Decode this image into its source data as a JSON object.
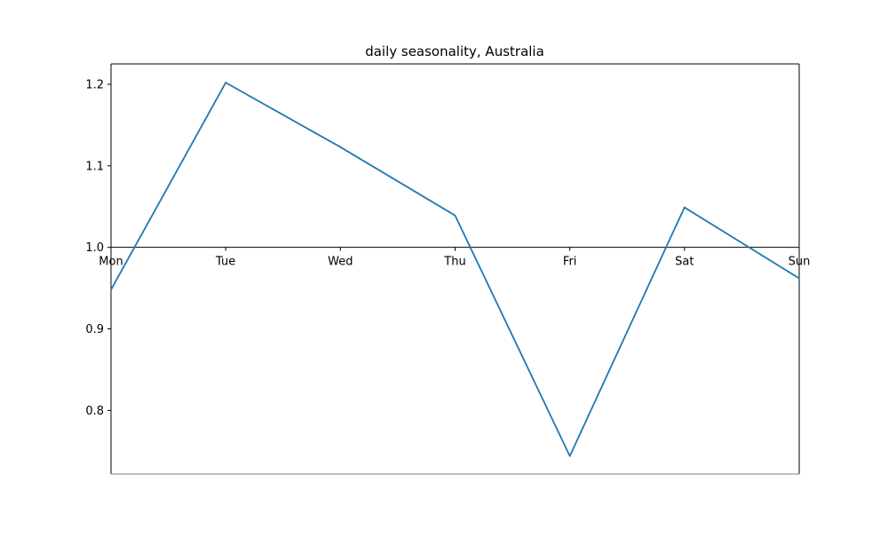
{
  "chart_data": {
    "type": "line",
    "title": "daily seasonality, Australia",
    "xlabel": "",
    "ylabel": "",
    "categories": [
      "Mon",
      "Tue",
      "Wed",
      "Thu",
      "Fri",
      "Sat",
      "Sun"
    ],
    "series": [
      {
        "values": [
          0.948,
          1.202,
          1.123,
          1.039,
          0.744,
          1.049,
          0.962
        ],
        "color": "#1f77b4"
      }
    ],
    "ylim": [
      0.722,
      1.225
    ],
    "yticks": [
      0.8,
      0.9,
      1.0,
      1.1,
      1.2
    ],
    "ytick_labels": [
      "0.8",
      "0.9",
      "1.0",
      "1.1",
      "1.2"
    ],
    "baseline": 1.0,
    "grid": false,
    "legend": "none"
  }
}
